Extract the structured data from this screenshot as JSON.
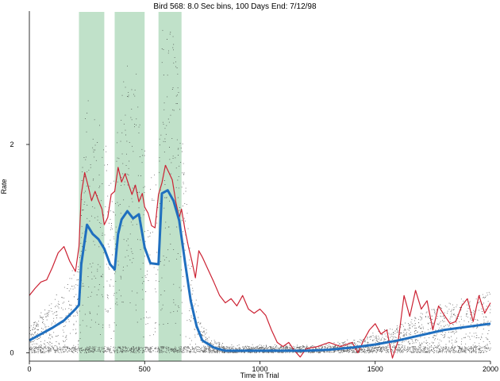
{
  "chart_data": {
    "type": "scatter",
    "title": "Bird 568: 8.0 Sec bins, 100 Days End: 7/12/98",
    "xlabel": "Time in Trial",
    "ylabel": "Rate",
    "xlim": [
      0,
      2000
    ],
    "ylim": [
      -0.08,
      3.28
    ],
    "x_ticks": [
      0,
      500,
      1000,
      1500,
      2000
    ],
    "x_tick_labels": [
      "0",
      "500",
      "1000",
      "1500",
      "2000"
    ],
    "y_ticks": [
      0,
      2
    ],
    "y_tick_labels": [
      "0",
      "2"
    ],
    "grid": false,
    "shaded_intervals": [
      [
        215,
        325
      ],
      [
        370,
        500
      ],
      [
        560,
        660
      ]
    ],
    "series": [
      {
        "color": "#1f6fbf",
        "x": [
          0,
          50,
          100,
          150,
          200,
          215,
          225,
          250,
          275,
          300,
          325,
          350,
          370,
          385,
          400,
          425,
          450,
          475,
          500,
          525,
          560,
          575,
          600,
          625,
          650,
          675,
          700,
          725,
          750,
          800,
          850,
          900,
          1000,
          1200,
          1300,
          1400,
          1500,
          1600,
          1700,
          1800,
          1900,
          2000
        ],
        "values": [
          0.12,
          0.18,
          0.24,
          0.31,
          0.42,
          0.46,
          0.85,
          1.23,
          1.14,
          1.09,
          1.0,
          0.85,
          0.8,
          1.14,
          1.28,
          1.36,
          1.29,
          1.33,
          1.01,
          0.86,
          0.85,
          1.53,
          1.56,
          1.46,
          1.27,
          0.87,
          0.5,
          0.26,
          0.12,
          0.05,
          0.02,
          0.02,
          0.02,
          0.02,
          0.03,
          0.05,
          0.08,
          0.12,
          0.17,
          0.22,
          0.25,
          0.28
        ]
      },
      {
        "color": "#cc2233",
        "x": [
          0,
          25,
          50,
          75,
          100,
          125,
          150,
          175,
          200,
          215,
          225,
          240,
          255,
          270,
          285,
          300,
          315,
          325,
          340,
          355,
          370,
          385,
          400,
          415,
          430,
          445,
          460,
          475,
          490,
          500,
          515,
          530,
          545,
          560,
          575,
          590,
          605,
          620,
          635,
          650,
          660,
          675,
          690,
          705,
          720,
          735,
          750,
          775,
          800,
          825,
          850,
          875,
          900,
          925,
          950,
          975,
          1000,
          1025,
          1050,
          1075,
          1100,
          1125,
          1150,
          1175,
          1200,
          1250,
          1300,
          1350,
          1400,
          1425,
          1450,
          1475,
          1500,
          1525,
          1550,
          1575,
          1600,
          1625,
          1650,
          1675,
          1700,
          1725,
          1750,
          1775,
          1800,
          1825,
          1850,
          1875,
          1900,
          1925,
          1950,
          1975,
          2000
        ],
        "values": [
          0.55,
          0.62,
          0.68,
          0.7,
          0.82,
          0.96,
          1.02,
          0.88,
          0.78,
          1.02,
          1.52,
          1.73,
          1.6,
          1.46,
          1.55,
          1.46,
          1.38,
          1.23,
          1.3,
          1.52,
          1.55,
          1.78,
          1.64,
          1.72,
          1.62,
          1.52,
          1.61,
          1.45,
          1.53,
          1.4,
          1.34,
          1.22,
          1.2,
          1.52,
          1.63,
          1.8,
          1.73,
          1.66,
          1.45,
          1.3,
          1.38,
          1.18,
          1.02,
          0.88,
          0.72,
          0.98,
          0.92,
          0.8,
          0.68,
          0.55,
          0.48,
          0.52,
          0.45,
          0.55,
          0.42,
          0.38,
          0.42,
          0.36,
          0.22,
          0.1,
          0.06,
          0.1,
          0.02,
          -0.04,
          0.04,
          0.06,
          0.1,
          0.06,
          0.1,
          0.0,
          0.12,
          0.22,
          0.28,
          0.18,
          0.22,
          -0.05,
          0.12,
          0.55,
          0.35,
          0.6,
          0.42,
          0.5,
          0.22,
          0.45,
          0.36,
          0.28,
          0.3,
          0.45,
          0.52,
          0.3,
          0.55,
          0.38,
          0.48
        ]
      }
    ]
  }
}
